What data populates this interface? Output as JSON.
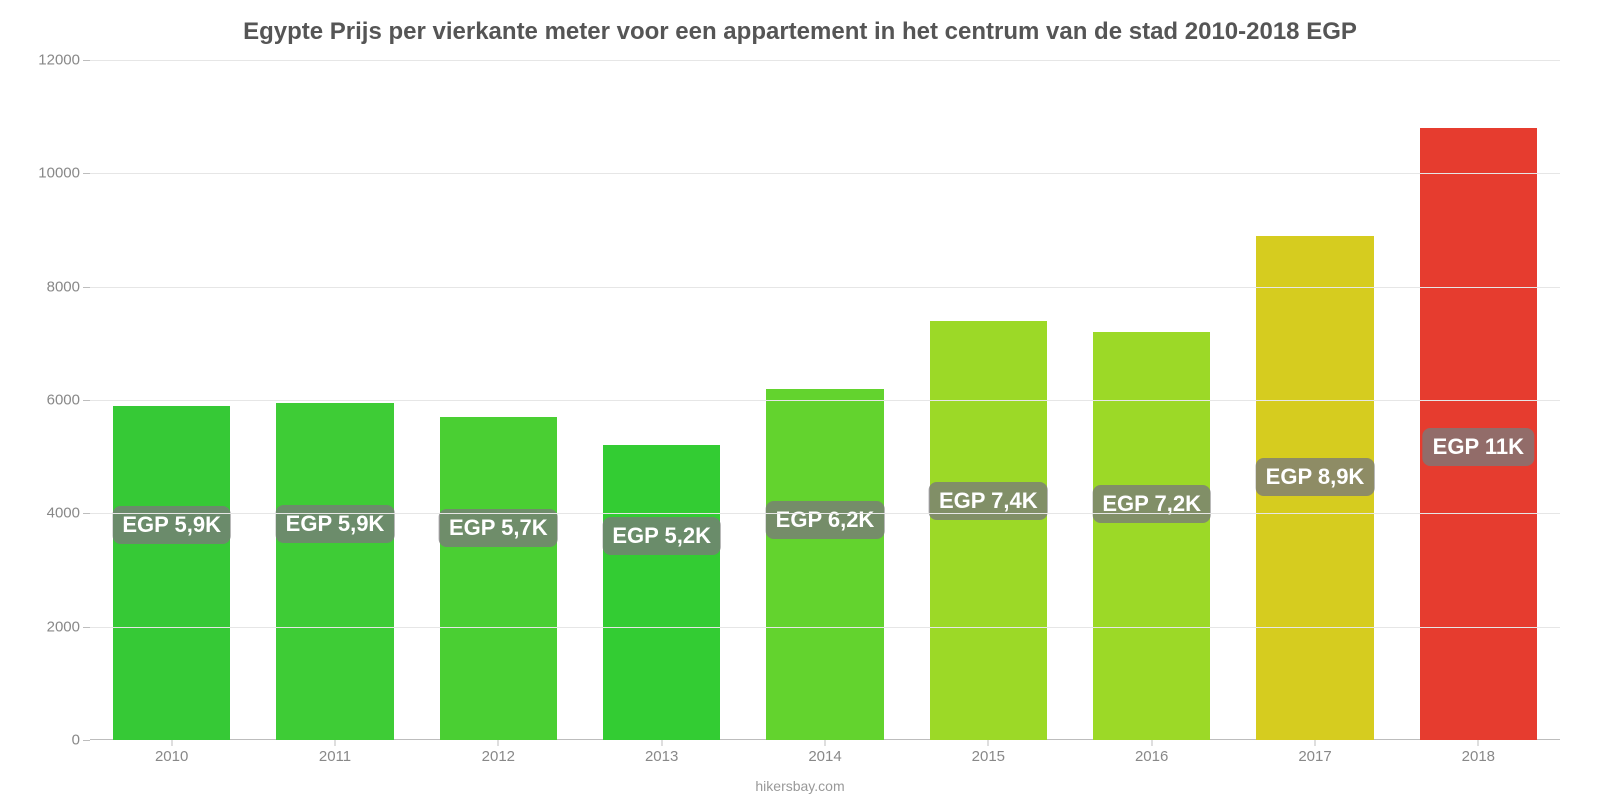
{
  "chart": {
    "type": "bar",
    "title": "Egypte Prijs per vierkante meter voor een appartement in het centrum van de stad 2010-2018 EGP",
    "title_fontsize": 24,
    "title_color": "#555555",
    "background_color": "#ffffff",
    "grid_color": "#e6e6e6",
    "axis_color": "#bdbdbd",
    "tick_color": "#888888",
    "tick_fontsize": 15,
    "ylim": [
      0,
      12000
    ],
    "ytick_step": 2000,
    "yticks": [
      "0",
      "2000",
      "4000",
      "6000",
      "8000",
      "10000",
      "12000"
    ],
    "categories": [
      "2010",
      "2011",
      "2012",
      "2013",
      "2014",
      "2015",
      "2016",
      "2017",
      "2018"
    ],
    "values": [
      5900,
      5950,
      5700,
      5200,
      6200,
      7400,
      7200,
      8900,
      10800
    ],
    "value_labels": [
      "EGP 5,9K",
      "EGP 5,9K",
      "EGP 5,7K",
      "EGP 5,2K",
      "EGP 6,2K",
      "EGP 7,4K",
      "EGP 7,2K",
      "EGP 8,9K",
      "EGP 11K"
    ],
    "bar_colors": [
      "#36c936",
      "#3ecc36",
      "#4acf33",
      "#33cc33",
      "#63d32e",
      "#9cd927",
      "#9cd927",
      "#d6cc1f",
      "#e63c2f"
    ],
    "bar_width": 0.72,
    "label_bg": "#7a7a7a",
    "label_bg_opacity": 0.78,
    "label_fontsize": 22,
    "label_color": "#ffffff",
    "attribution": "hikersbay.com",
    "attribution_color": "#999999"
  }
}
